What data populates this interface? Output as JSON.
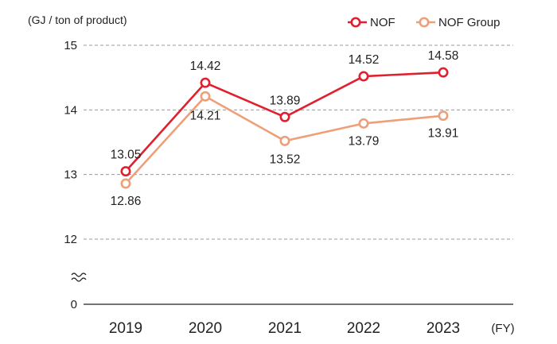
{
  "chart_data": {
    "type": "line",
    "ylabel": "(GJ / ton of product)",
    "xlabel": "(FY)",
    "categories": [
      "2019",
      "2020",
      "2021",
      "2022",
      "2023"
    ],
    "y_ticks": [
      "15",
      "14",
      "13",
      "12",
      "0"
    ],
    "axis_break": true,
    "ylim": [
      12,
      15
    ],
    "grid": true,
    "legend_position": "top-right",
    "series": [
      {
        "name": "NOF",
        "color": "#e0202f",
        "values": [
          13.05,
          14.42,
          13.89,
          14.52,
          14.58
        ],
        "labels": [
          "13.05",
          "14.42",
          "13.89",
          "14.52",
          "14.58"
        ],
        "label_position": "above"
      },
      {
        "name": "NOF Group",
        "color": "#ef9f78",
        "values": [
          12.86,
          14.21,
          13.52,
          13.79,
          13.91
        ],
        "labels": [
          "12.86",
          "14.21",
          "13.52",
          "13.79",
          "13.91"
        ],
        "label_position": "below"
      }
    ]
  }
}
